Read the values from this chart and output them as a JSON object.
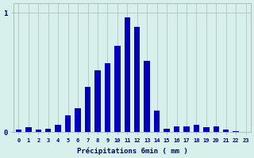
{
  "title": "",
  "xlabel": "Précipitations 6min ( mm )",
  "ylabel": "",
  "background_color": "#d7f0ec",
  "bar_color": "#0000bb",
  "grid_color": "#b0c4c4",
  "axis_color": "#9aaaaa",
  "text_color": "#000088",
  "ylim": [
    0,
    1.08
  ],
  "yticks": [
    0,
    1
  ],
  "categories": [
    0,
    1,
    2,
    3,
    4,
    5,
    6,
    7,
    8,
    9,
    10,
    11,
    12,
    13,
    14,
    15,
    16,
    17,
    18,
    19,
    20,
    21,
    22,
    23
  ],
  "values": [
    0.02,
    0.04,
    0.02,
    0.03,
    0.06,
    0.14,
    0.2,
    0.38,
    0.52,
    0.58,
    0.72,
    0.96,
    0.88,
    0.6,
    0.18,
    0.03,
    0.05,
    0.05,
    0.06,
    0.04,
    0.05,
    0.02,
    0.01,
    0.0
  ]
}
